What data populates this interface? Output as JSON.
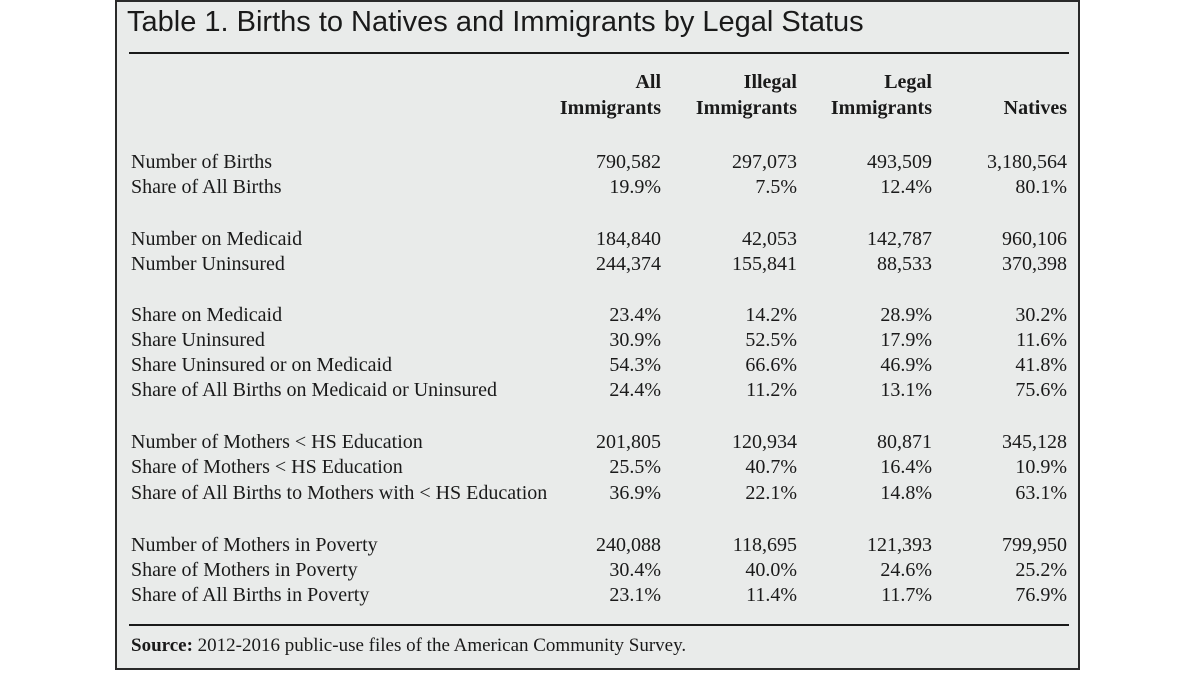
{
  "title": "Table 1. Births to Natives and Immigrants by Legal Status",
  "columns": [
    {
      "line1": "All",
      "line2": "Immigrants"
    },
    {
      "line1": "Illegal",
      "line2": "Immigrants"
    },
    {
      "line1": "Legal",
      "line2": "Immigrants"
    },
    {
      "line1": "",
      "line2": "Natives"
    }
  ],
  "rows": [
    {
      "label": "Number of Births",
      "values": [
        "790,582",
        "297,073",
        "493,509",
        "3,180,564"
      ]
    },
    {
      "label": "Share of All Births",
      "values": [
        "19.9%",
        "7.5%",
        "12.4%",
        "80.1%"
      ]
    },
    {
      "label": "Number on Medicaid",
      "values": [
        "184,840",
        "42,053",
        "142,787",
        "960,106"
      ]
    },
    {
      "label": "Number Uninsured",
      "values": [
        "244,374",
        "155,841",
        "88,533",
        "370,398"
      ]
    },
    {
      "label": "Share on Medicaid",
      "values": [
        "23.4%",
        "14.2%",
        "28.9%",
        "30.2%"
      ]
    },
    {
      "label": "Share Uninsured",
      "values": [
        "30.9%",
        "52.5%",
        "17.9%",
        "11.6%"
      ]
    },
    {
      "label": "Share Uninsured or on Medicaid",
      "values": [
        "54.3%",
        "66.6%",
        "46.9%",
        "41.8%"
      ]
    },
    {
      "label": "Share of All Births on Medicaid or Uninsured",
      "values": [
        "24.4%",
        "11.2%",
        "13.1%",
        "75.6%"
      ]
    },
    {
      "label": "Number of Mothers < HS Education",
      "values": [
        "201,805",
        "120,934",
        "80,871",
        "345,128"
      ]
    },
    {
      "label": "Share of Mothers < HS Education",
      "values": [
        "25.5%",
        "40.7%",
        "16.4%",
        "10.9%"
      ]
    },
    {
      "label": "Share of All Births to Mothers with < HS Education",
      "values": [
        "36.9%",
        "22.1%",
        "14.8%",
        "63.1%"
      ]
    },
    {
      "label": "Number of Mothers in Poverty",
      "values": [
        "240,088",
        "118,695",
        "121,393",
        "799,950"
      ]
    },
    {
      "label": "Share of Mothers in Poverty",
      "values": [
        "30.4%",
        "40.0%",
        "24.6%",
        "25.2%"
      ]
    },
    {
      "label": "Share of All Births in Poverty",
      "values": [
        "23.1%",
        "11.4%",
        "11.7%",
        "76.9%"
      ]
    }
  ],
  "source": {
    "label": "Source:",
    "text": "2012-2016 public-use files of the American Community Survey."
  }
}
